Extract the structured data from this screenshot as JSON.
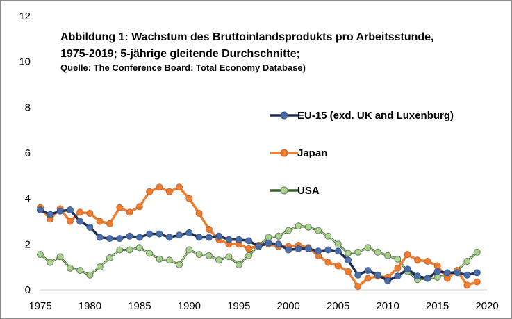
{
  "chart_data": {
    "type": "line",
    "title_lines": [
      "Abbildung 1: Wachstum des Bruttoinlandsprodukts pro Arbeitsstunde,",
      "1975-2019; 5-jährige gleitende Durchschnitte;"
    ],
    "subtitle": "Quelle: The Conference Board: Total Economy Database)",
    "xlim": [
      1975,
      2020
    ],
    "ylim": [
      0,
      12
    ],
    "x_ticks": [
      1975,
      1980,
      1985,
      1990,
      1995,
      2000,
      2005,
      2010,
      2015,
      2020
    ],
    "y_ticks": [
      0,
      2,
      4,
      6,
      8,
      10,
      12
    ],
    "grid": false,
    "legend_position": "right",
    "x": [
      1975,
      1976,
      1977,
      1978,
      1979,
      1980,
      1981,
      1982,
      1983,
      1984,
      1985,
      1986,
      1987,
      1988,
      1989,
      1990,
      1991,
      1992,
      1993,
      1994,
      1995,
      1996,
      1997,
      1998,
      1999,
      2000,
      2001,
      2002,
      2003,
      2004,
      2005,
      2006,
      2007,
      2008,
      2009,
      2010,
      2011,
      2012,
      2013,
      2014,
      2015,
      2016,
      2017,
      2018,
      2019
    ],
    "series": [
      {
        "name": "EU-15 (exd. UK and Luxenburg)",
        "line_color": "#1f2d50",
        "marker_color": "#4a6da8",
        "values": [
          3.5,
          3.3,
          3.45,
          3.5,
          3.0,
          2.75,
          2.3,
          2.25,
          2.25,
          2.35,
          2.3,
          2.45,
          2.45,
          2.3,
          2.4,
          2.5,
          2.3,
          2.3,
          2.35,
          2.2,
          2.2,
          2.15,
          1.9,
          2.05,
          2.0,
          1.75,
          1.8,
          1.8,
          1.7,
          1.75,
          1.7,
          1.3,
          0.65,
          0.85,
          0.65,
          0.4,
          0.6,
          0.9,
          0.6,
          0.5,
          0.8,
          0.75,
          0.75,
          0.65,
          0.75
        ]
      },
      {
        "name": "Japan",
        "line_color": "#ed7d31",
        "marker_color": "#ed7d31",
        "values": [
          3.6,
          3.1,
          3.55,
          3.0,
          3.4,
          3.35,
          3.0,
          2.9,
          3.6,
          3.4,
          3.65,
          4.3,
          4.5,
          4.3,
          4.5,
          4.0,
          3.35,
          2.65,
          2.2,
          2.0,
          2.0,
          1.8,
          1.95,
          2.0,
          1.9,
          1.9,
          1.95,
          1.85,
          1.5,
          1.2,
          1.05,
          0.8,
          0.15,
          0.5,
          0.6,
          0.55,
          0.95,
          1.55,
          1.3,
          1.25,
          1.05,
          0.5,
          0.85,
          0.2,
          0.35
        ]
      },
      {
        "name": "USA",
        "line_color": "#3a5f2a",
        "marker_color": "#a9d18e",
        "values": [
          1.55,
          1.2,
          1.45,
          0.95,
          0.85,
          0.65,
          1.0,
          1.4,
          1.75,
          1.75,
          1.85,
          1.6,
          1.35,
          1.3,
          1.1,
          1.75,
          1.55,
          1.5,
          1.3,
          1.45,
          1.1,
          1.5,
          1.95,
          2.3,
          2.35,
          2.6,
          2.8,
          2.75,
          2.6,
          2.35,
          2.0,
          1.6,
          1.65,
          1.85,
          1.65,
          1.5,
          1.35,
          0.8,
          0.45,
          0.5,
          0.55,
          0.65,
          0.85,
          1.25,
          1.65
        ]
      }
    ]
  }
}
